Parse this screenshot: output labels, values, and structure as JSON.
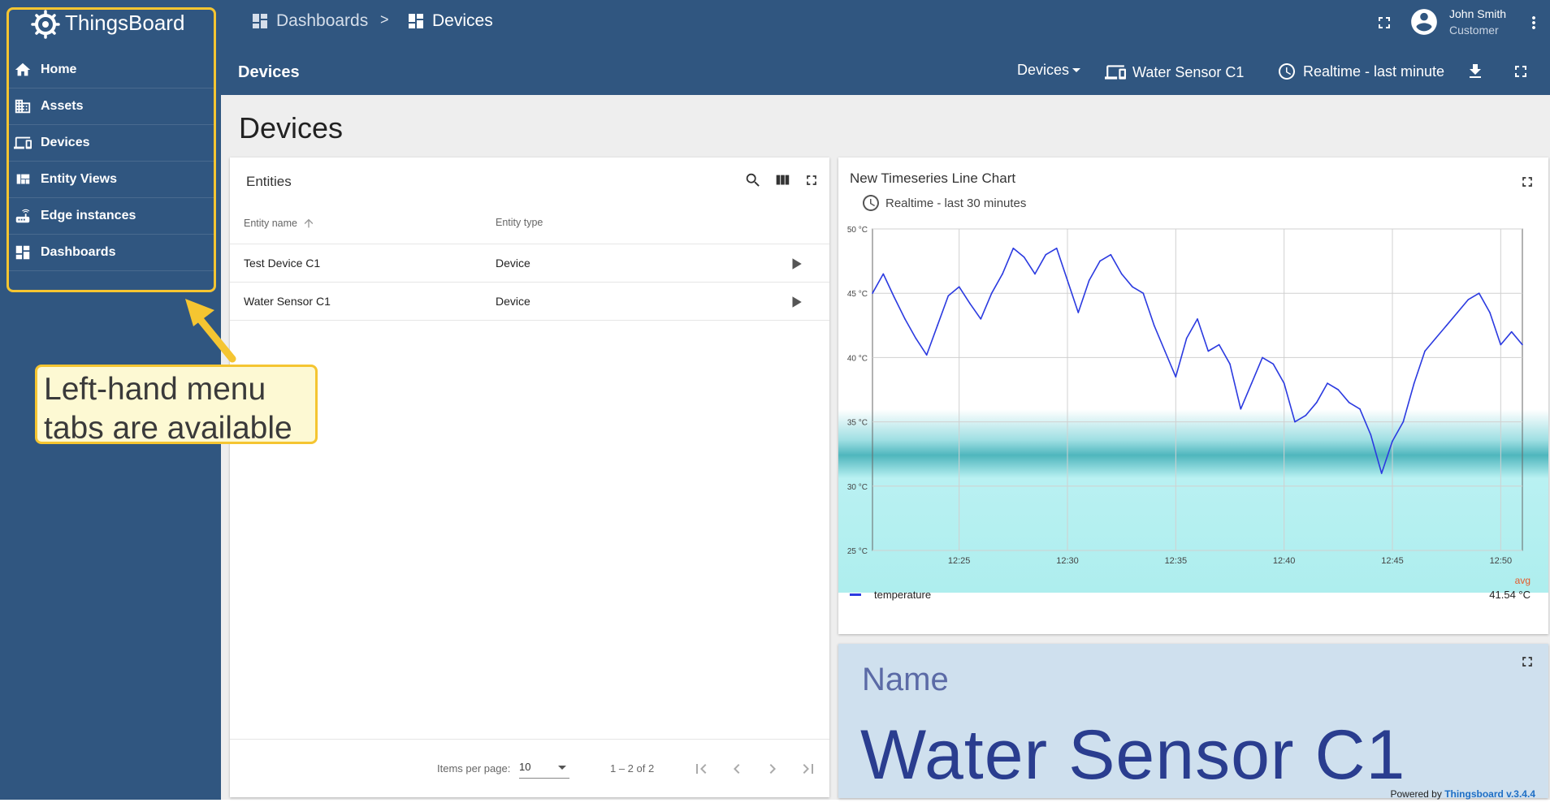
{
  "app": {
    "name": "ThingsBoard"
  },
  "sidebar": {
    "items": [
      {
        "label": "Home",
        "icon": "home-icon"
      },
      {
        "label": "Assets",
        "icon": "domain-icon"
      },
      {
        "label": "Devices",
        "icon": "devices-icon"
      },
      {
        "label": "Entity Views",
        "icon": "view-quilt-icon"
      },
      {
        "label": "Edge instances",
        "icon": "router-icon"
      },
      {
        "label": "Dashboards",
        "icon": "dashboard-icon"
      }
    ]
  },
  "annotation": {
    "line1": "Left-hand menu",
    "line2": "tabs are available"
  },
  "topbar": {
    "breadcrumb": [
      {
        "label": "Dashboards",
        "icon": "dashboard-icon"
      },
      {
        "label": "Devices",
        "icon": "dashboard-icon"
      }
    ],
    "separator": ">",
    "user": {
      "name": "John Smith",
      "role": "Customer"
    }
  },
  "subbar": {
    "title": "Devices",
    "state_select": "Devices",
    "entity": "Water Sensor C1",
    "timewindow": "Realtime - last minute"
  },
  "page": {
    "title": "Devices"
  },
  "entities_widget": {
    "title": "Entities",
    "columns": [
      "Entity name",
      "Entity type"
    ],
    "rows": [
      {
        "name": "Test Device C1",
        "type": "Device"
      },
      {
        "name": "Water Sensor C1",
        "type": "Device"
      }
    ],
    "pager": {
      "items_per_page_label": "Items per page:",
      "items_per_page": "10",
      "range": "1 – 2 of 2"
    }
  },
  "chart_widget": {
    "title": "New Timeseries Line Chart",
    "timewindow": "Realtime - last 30 minutes",
    "legend_label": "temperature",
    "aggregate_label": "avg",
    "aggregate_value": "41.54 °C"
  },
  "chart_data": {
    "type": "line",
    "title": "New Timeseries Line Chart",
    "xlabel": "",
    "ylabel": "",
    "x_range_minutes": [
      0,
      30
    ],
    "x_tick_labels": [
      "12:25",
      "12:30",
      "12:35",
      "12:40",
      "12:45",
      "12:50"
    ],
    "x_tick_minutes": [
      4,
      9,
      14,
      19,
      24,
      29
    ],
    "y_tick_labels": [
      "50 °C",
      "45 °C",
      "40 °C",
      "35 °C",
      "30 °C",
      "25 °C"
    ],
    "y_tick_values": [
      50,
      45,
      40,
      35,
      30,
      25
    ],
    "ylim": [
      25,
      50
    ],
    "grid": true,
    "legend": "bottom-left",
    "series": [
      {
        "name": "temperature",
        "color": "#2b3ae0",
        "x": [
          0,
          0.5,
          1,
          1.5,
          2,
          2.5,
          3,
          3.5,
          4,
          4.5,
          5,
          5.5,
          6,
          6.5,
          7,
          7.5,
          8,
          8.5,
          9,
          9.5,
          10,
          10.5,
          11,
          11.5,
          12,
          12.5,
          13,
          13.5,
          14,
          14.5,
          15,
          15.5,
          16,
          16.5,
          17,
          17.5,
          18,
          18.5,
          19,
          19.5,
          20,
          20.5,
          21,
          21.5,
          22,
          22.5,
          23,
          23.5,
          24,
          24.5,
          25,
          25.5,
          26,
          26.5,
          27,
          27.5,
          28,
          28.5,
          29,
          29.5,
          30
        ],
        "values": [
          45.0,
          46.5,
          44.7,
          43.0,
          41.5,
          40.2,
          42.5,
          44.8,
          45.5,
          44.2,
          43.0,
          45.0,
          46.5,
          48.5,
          47.8,
          46.5,
          48.0,
          48.5,
          46.0,
          43.5,
          46.0,
          47.5,
          48.0,
          46.5,
          45.5,
          45.0,
          42.5,
          40.5,
          38.5,
          41.5,
          43.0,
          40.5,
          41.0,
          39.5,
          36.0,
          38.0,
          40.0,
          39.5,
          38.0,
          35.0,
          35.5,
          36.5,
          38.0,
          37.5,
          36.5,
          36.0,
          34.0,
          31.0,
          33.5,
          35.0,
          38.0,
          40.5,
          41.5,
          42.5,
          43.5,
          44.5,
          45.0,
          43.5,
          41.0,
          42.0,
          41.0
        ]
      }
    ]
  },
  "name_widget": {
    "label": "Name",
    "value": "Water Sensor C1"
  },
  "footer": {
    "powered_by": "Powered by",
    "version_link": "Thingsboard v.3.4.4"
  },
  "colors": {
    "primary": "#305680",
    "highlight": "#f5c531",
    "series": "#2b3ae0"
  }
}
